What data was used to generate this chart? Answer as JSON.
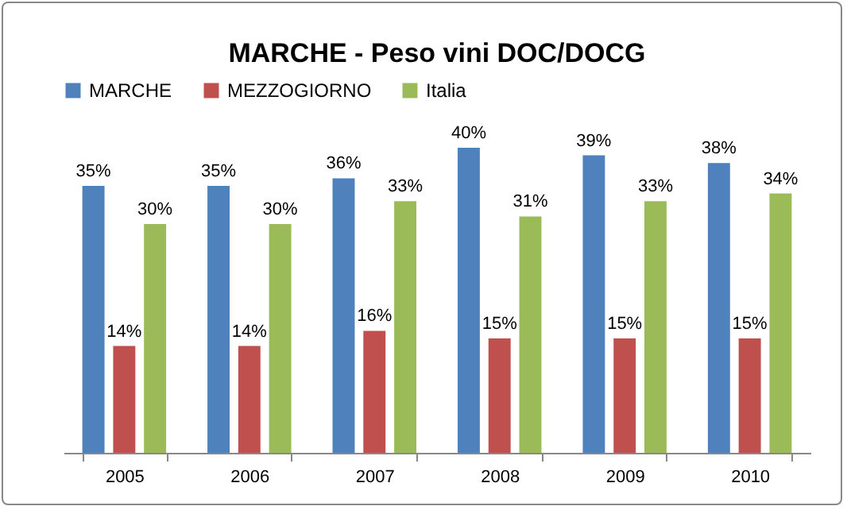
{
  "chart_data": {
    "type": "bar",
    "title": "MARCHE - Peso vini DOC/DOCG",
    "categories": [
      "2005",
      "2006",
      "2007",
      "2008",
      "2009",
      "2010"
    ],
    "series": [
      {
        "name": "MARCHE",
        "color": "#4f81bd",
        "values": [
          35,
          35,
          36,
          40,
          39,
          38
        ],
        "value_labels": [
          "35%",
          "35%",
          "36%",
          "40%",
          "39%",
          "38%"
        ]
      },
      {
        "name": "MEZZOGIORNO",
        "color": "#c0504d",
        "values": [
          14,
          14,
          16,
          15,
          15,
          15
        ],
        "value_labels": [
          "14%",
          "14%",
          "16%",
          "15%",
          "15%",
          "15%"
        ]
      },
      {
        "name": "Italia",
        "color": "#9bbb59",
        "values": [
          30,
          30,
          33,
          31,
          33,
          34
        ],
        "value_labels": [
          "30%",
          "30%",
          "33%",
          "31%",
          "33%",
          "34%"
        ]
      }
    ],
    "legend": "top"
  }
}
